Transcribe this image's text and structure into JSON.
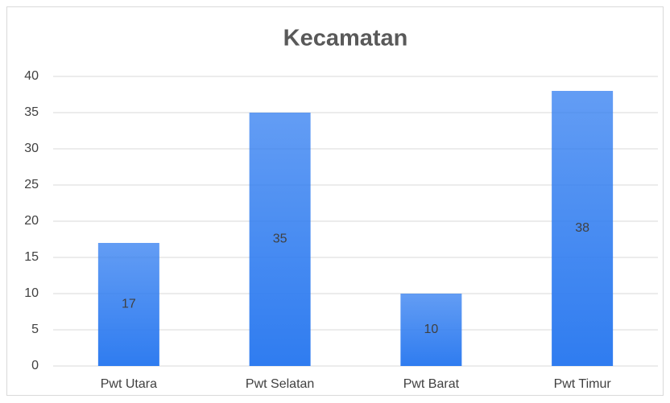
{
  "chart_data": {
    "type": "bar",
    "title": "Kecamatan",
    "categories": [
      "Pwt Utara",
      "Pwt Selatan",
      "Pwt Barat",
      "Pwt Timur"
    ],
    "values": [
      17,
      35,
      10,
      38
    ],
    "color": "#2f7cf0",
    "ylim": [
      0,
      40
    ],
    "yticks": [
      0,
      5,
      10,
      15,
      20,
      25,
      30,
      35,
      40
    ],
    "grid": true
  }
}
